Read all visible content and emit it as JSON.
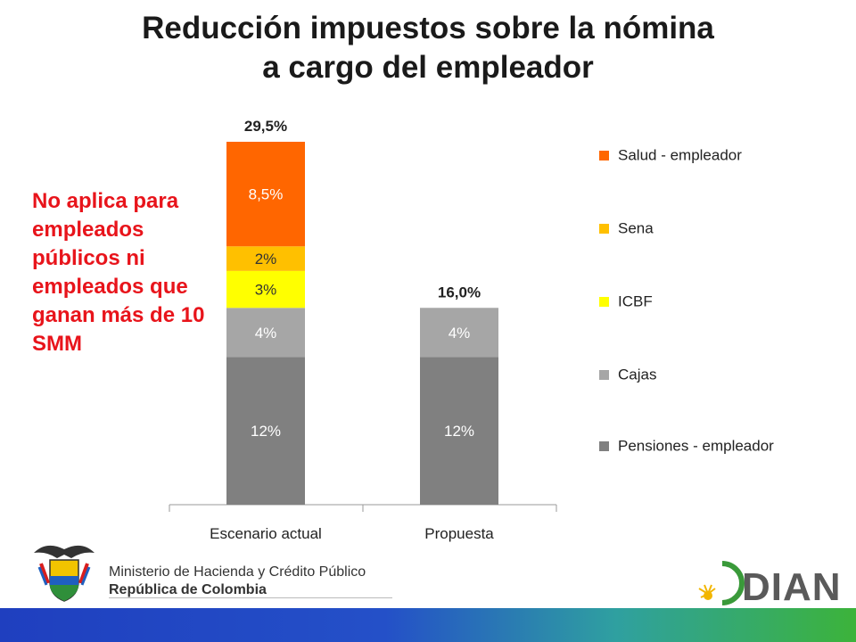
{
  "title_line1": "Reducción impuestos sobre la nómina",
  "title_line2": "a cargo del empleador",
  "note": "No aplica para empleados públicos ni empleados que ganan más de 10 SMM",
  "colors": {
    "salud": "#ff6600",
    "sena": "#ffc000",
    "icbf": "#ffff00",
    "cajas": "#a6a6a6",
    "pensiones": "#808080",
    "note": "#e8141b"
  },
  "chart_data": {
    "type": "bar",
    "stacked": true,
    "categories": [
      "Escenario actual",
      "Propuesta"
    ],
    "series": [
      {
        "name": "Pensiones - empleador",
        "values": [
          12,
          12
        ],
        "labels": [
          "12%",
          "12%"
        ],
        "color_key": "pensiones"
      },
      {
        "name": "Cajas",
        "values": [
          4,
          4
        ],
        "labels": [
          "4%",
          "4%"
        ],
        "color_key": "cajas"
      },
      {
        "name": "ICBF",
        "values": [
          3,
          0
        ],
        "labels": [
          "3%",
          ""
        ],
        "color_key": "icbf"
      },
      {
        "name": "Sena",
        "values": [
          2,
          0
        ],
        "labels": [
          "2%",
          ""
        ],
        "color_key": "sena"
      },
      {
        "name": "Salud - empleador",
        "values": [
          8.5,
          0
        ],
        "labels": [
          "8,5%",
          ""
        ],
        "color_key": "salud"
      }
    ],
    "totals": [
      "29,5%",
      "16,0%"
    ],
    "legend": [
      "Salud - empleador",
      "Sena",
      "ICBF",
      "Cajas",
      "Pensiones - empleador"
    ],
    "legend_position": "right",
    "ylim": [
      0,
      29.5
    ],
    "grid": false
  },
  "footer": {
    "ministry": "Ministerio de Hacienda y Crédito Público",
    "republic": "República de Colombia",
    "dian": "DIAN"
  }
}
